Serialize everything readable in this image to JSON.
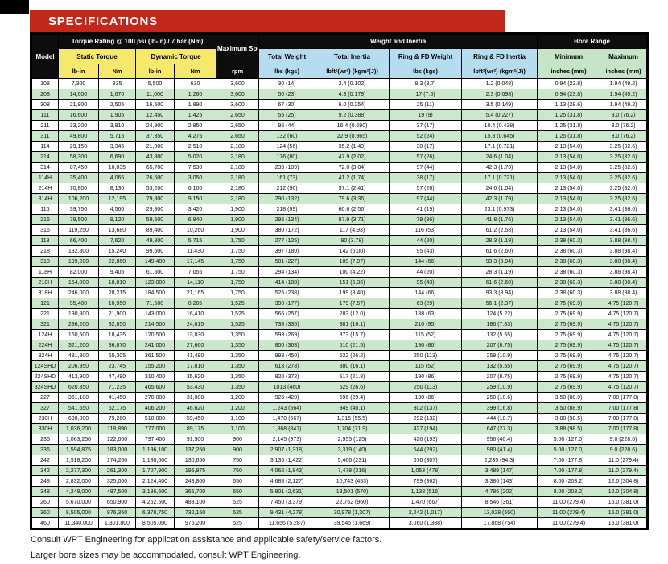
{
  "page": {
    "banner_title": "SPECIFICATIONS",
    "footer_line1": "Consult WPT Engineering for application assistance and applicable safety/service factors.",
    "footer_line2": "Larger bore sizes may be accommodated, consult WPT Engineering.",
    "colors": {
      "banner_red": "#c1271b",
      "header_black": "#0d0d0d",
      "torque_yellow": "#f6e86a",
      "weight_blue": "#b6ddef",
      "bore_green": "#c6e5c6",
      "row_stripe_green": "#cbe8cc"
    }
  },
  "table": {
    "group_headers": {
      "model": "Model",
      "torque_rating": "Torque Rating @ 100 psi (lb-in) / 7 bar (Nm)",
      "max_speed": "Maximum Speed",
      "weight_inertia": "Weight and Inertia",
      "bore_range": "Bore Range"
    },
    "sub_headers": {
      "static_torque": "Static Torque",
      "dynamic_torque": "Dynamic Torque",
      "total_weight": "Total Weight",
      "total_inertia": "Total Inertia",
      "ring_fd_weight": "Ring & FD Weight",
      "ring_fd_inertia": "Ring & FD Inertia",
      "minimum": "Minimum",
      "maximum": "Maximum"
    },
    "unit_headers": {
      "static_lbin": "lb-in",
      "static_nm": "Nm",
      "dynamic_lbin": "lb-in",
      "dynamic_nm": "Nm",
      "rpm": "rpm",
      "total_weight": "lbs (kgs)",
      "total_inertia": "lbft²(wr²) (kgm²(J))",
      "ring_fd_weight": "lbs (kgs)",
      "ring_fd_inertia": "lbft²(wr²) (kgm²(J))",
      "bore_min": "inches (mm)",
      "bore_max": "inches (mm)"
    },
    "columns": [
      "model",
      "static_lbin",
      "static_nm",
      "dynamic_lbin",
      "dynamic_nm",
      "max_speed_rpm",
      "total_weight",
      "total_inertia",
      "ring_fd_weight",
      "ring_fd_inertia",
      "bore_min",
      "bore_max"
    ],
    "rows": [
      [
        "108",
        "7,300",
        "835",
        "5,500",
        "630",
        "3,600",
        "30 (14)",
        "2.4 (0.102)",
        "8.3 (3.7)",
        "1.2 (0.048)",
        "0.94 (23.8)",
        "1.94 (49.2)"
      ],
      [
        "208",
        "14,600",
        "1,670",
        "11,000",
        "1,260",
        "3,600",
        "50 (23)",
        "4.3 (0.179)",
        "17 (7.5)",
        "2.3 (0.098)",
        "0.94 (23.8)",
        "1.94 (49.2)"
      ],
      [
        "308",
        "21,900",
        "2,505",
        "16,500",
        "1,890",
        "3,600",
        "67 (30)",
        "6.0 (0.254)",
        "25 (11)",
        "3.5 (0.149)",
        "1.13 (28.6)",
        "1.94 (49.2)"
      ],
      [
        "111",
        "16,600",
        "1,905",
        "12,450",
        "1,425",
        "2,650",
        "55 (25)",
        "9.2 (0.388)",
        "19 (9)",
        "5.4 (0.227)",
        "1.25 (31.8)",
        "3.0 (76.2)"
      ],
      [
        "211",
        "33,200",
        "3,810",
        "24,900",
        "2,850",
        "2,650",
        "96 (44)",
        "16.4 (0.690)",
        "37 (17)",
        "10.4 (0.438)",
        "1.25 (31.8)",
        "3.0 (76.2)"
      ],
      [
        "311",
        "49,800",
        "5,715",
        "37,350",
        "4,275",
        "2,650",
        "132 (60)",
        "22.9 (0.965)",
        "52 (24)",
        "15.3 (0.645)",
        "1.25 (31.8)",
        "3.0 (76.2)"
      ],
      [
        "114",
        "29,150",
        "3,345",
        "21,900",
        "2,510",
        "2,180",
        "124 (56)",
        "35.2 (1.49)",
        "38 (17)",
        "17.1 (0.721)",
        "2.13 (54.0)",
        "3.25 (82.6)"
      ],
      [
        "214",
        "58,300",
        "6,690",
        "43,800",
        "5,020",
        "2,180",
        "176 (80)",
        "47.9 (2.02)",
        "57 (26)",
        "24.6 (1.04)",
        "2.13 (54.0)",
        "3.25 (82.6)"
      ],
      [
        "314",
        "87,450",
        "10,035",
        "65,700",
        "7,530",
        "2,180",
        "239 (109)",
        "72.0 (3.04)",
        "97 (44)",
        "42.3 (1.79)",
        "2.13 (54.0)",
        "3.25 (82.6)"
      ],
      [
        "114H",
        "35,400",
        "4,065",
        "26,600",
        "3,050",
        "2,180",
        "161 (73)",
        "41.2 (1.74)",
        "38 (17)",
        "17.1 (0.721)",
        "2.13 (54.0)",
        "3.25 (82.6)"
      ],
      [
        "214H",
        "70,800",
        "8,130",
        "53,200",
        "6,100",
        "2,180",
        "212 (96)",
        "57.1 (2.41)",
        "57 (26)",
        "24.6 (1.04)",
        "2.13 (54.0)",
        "3.25 (82.6)"
      ],
      [
        "314H",
        "106,200",
        "12,195",
        "79,800",
        "9,150",
        "2,180",
        "290 (132)",
        "79.6 (3.36)",
        "97 (44)",
        "42.3 (1.79)",
        "2.13 (54.0)",
        "3.25 (82.6)"
      ],
      [
        "116",
        "39,750",
        "4,560",
        "29,800",
        "3,420",
        "1,900",
        "218 (99)",
        "60.6 (2.56)",
        "41 (19)",
        "23.1 (0.973)",
        "2.13 (54.0)",
        "3.41 (86.6)"
      ],
      [
        "216",
        "79,500",
        "9,120",
        "59,600",
        "6,840",
        "1,900",
        "296 (134)",
        "87.9 (3.71)",
        "79 (36)",
        "41.8 (1.76)",
        "2.13 (54.0)",
        "3.41 (86.6)"
      ],
      [
        "316",
        "119,250",
        "13,680",
        "89,400",
        "10,260",
        "1,900",
        "380 (172)",
        "117 (4.93)",
        "116 (53)",
        "61.2 (2.58)",
        "2.13 (54.0)",
        "3.41 (86.6)"
      ],
      [
        "118",
        "66,400",
        "7,620",
        "49,800",
        "5,715",
        "1,750",
        "277 (125)",
        "90 (3.78)",
        "44 (20)",
        "28.3 (1.19)",
        "2.38 (60.3)",
        "3.88 (98.4)"
      ],
      [
        "218",
        "132,800",
        "15,240",
        "99,600",
        "11,430",
        "1,750",
        "397 (180)",
        "142 (6.00)",
        "95 (43)",
        "61.6 (2.60)",
        "2.38 (60.3)",
        "3.88 (98.4)"
      ],
      [
        "318",
        "199,200",
        "22,860",
        "149,400",
        "17,145",
        "1,750",
        "501 (227)",
        "189 (7.97)",
        "144 (66)",
        "93.3 (3.94)",
        "2.38 (60.3)",
        "3.88 (98.4)"
      ],
      [
        "118H",
        "82,000",
        "9,405",
        "61,500",
        "7,055",
        "1,750",
        "294 (134)",
        "100 (4.22)",
        "44 (20)",
        "28.3 (1.19)",
        "2.38 (60.3)",
        "3.88 (98.4)"
      ],
      [
        "218H",
        "164,000",
        "18,810",
        "123,000",
        "14,110",
        "1,750",
        "414 (188)",
        "151 (6.36)",
        "95 (43)",
        "61.6 (2.60)",
        "2.38 (60.3)",
        "3.88 (98.4)"
      ],
      [
        "318H",
        "246,000",
        "28,215",
        "184,500",
        "21,165",
        "1,750",
        "525 (238)",
        "199 (8.40)",
        "144 (66)",
        "93.3 (3.94)",
        "2.38 (60.3)",
        "3.88 (98.4)"
      ],
      [
        "121",
        "95,400",
        "10,950",
        "71,500",
        "8,205",
        "1,525",
        "390 (177)",
        "179 (7.57)",
        "63 (29)",
        "56.1 (2.37)",
        "2.75 (69.9)",
        "4.75 (120.7)"
      ],
      [
        "221",
        "190,800",
        "21,900",
        "143,000",
        "16,410",
        "1,525",
        "566 (257)",
        "283 (12.0)",
        "138 (63)",
        "124 (5.22)",
        "2.75 (69.9)",
        "4.75 (120.7)"
      ],
      [
        "321",
        "286,200",
        "32,850",
        "214,500",
        "24,615",
        "1,525",
        "738 (335)",
        "381 (16.1)",
        "210 (95)",
        "186 (7.83)",
        "2.75 (69.9)",
        "4.75 (120.7)"
      ],
      [
        "124H",
        "160,600",
        "18,435",
        "120,500",
        "13,830",
        "1,350",
        "593 (269)",
        "373 (15.7)",
        "115 (52)",
        "132 (5.55)",
        "2.75 (69.9)",
        "4.75 (120.7)"
      ],
      [
        "224H",
        "321,200",
        "36,870",
        "241,000",
        "27,660",
        "1,350",
        "800 (363)",
        "510 (21.5)",
        "190 (86)",
        "207 (8.75)",
        "2.75 (69.9)",
        "4.75 (120.7)"
      ],
      [
        "324H",
        "481,800",
        "55,305",
        "361,500",
        "41,490",
        "1,350",
        "993 (450)",
        "622 (26.2)",
        "250 (113)",
        "259 (10.9)",
        "2.75 (69.9)",
        "4.75 (120.7)"
      ],
      [
        "124SHD",
        "206,950",
        "23,745",
        "155,200",
        "17,810",
        "1,350",
        "613 (278)",
        "380 (16.1)",
        "115 (52)",
        "132 (5.55)",
        "2.75 (69.9)",
        "4.75 (120.7)"
      ],
      [
        "224SHD",
        "413,900",
        "47,490",
        "310,400",
        "35,620",
        "1,350",
        "820 (372)",
        "517 (21.8)",
        "190 (86)",
        "207 (8.75)",
        "2.75 (69.9)",
        "4.75 (120.7)"
      ],
      [
        "324SHD",
        "620,850",
        "71,235",
        "465,600",
        "53,430",
        "1,350",
        "1013 (460)",
        "629 (26.6)",
        "250 (113)",
        "259 (10.9)",
        "2.75 (69.9)",
        "4.75 (120.7)"
      ],
      [
        "227",
        "361,100",
        "41,450",
        "270,800",
        "31,080",
        "1,200",
        "926 (420)",
        "696 (29.4)",
        "190 (86)",
        "250 (10.6)",
        "3.50 (88.9)",
        "7.00 (177.8)"
      ],
      [
        "327",
        "541,650",
        "62,175",
        "406,200",
        "46,620",
        "1,200",
        "1,243 (564)",
        "949 (40.1)",
        "302 (137)",
        "399 (16.8)",
        "3.50 (88.9)",
        "7.00 (177.8)"
      ],
      [
        "230H",
        "690,800",
        "79,260",
        "518,000",
        "59,450",
        "1,100",
        "1,470 (667)",
        "1,315 (55.5)",
        "292 (132)",
        "444 (18.7)",
        "3.88 (98.5)",
        "7.00 (177.8)"
      ],
      [
        "330H",
        "1,036,200",
        "118,890",
        "777,000",
        "89,175",
        "1,100",
        "1,868 (847)",
        "1,704 (71.9)",
        "427 (194)",
        "647 (27.3)",
        "3.88 (98.5)",
        "7.00 (177.8)"
      ],
      [
        "236",
        "1,063,250",
        "122,000",
        "797,400",
        "91,500",
        "900",
        "2,145 (973)",
        "2,955 (125)",
        "426 (193)",
        "956 (40.4)",
        "5.00 (127.0)",
        "9.0 (228.6)"
      ],
      [
        "336",
        "1,594,875",
        "183,000",
        "1,196,100",
        "137,250",
        "900",
        "2,907 (1,318)",
        "3,319 (140)",
        "644 (292)",
        "980 (41.4)",
        "5.00 (127.0)",
        "9.0 (228.6)"
      ],
      [
        "242",
        "1,518,200",
        "174,200",
        "1,138,600",
        "130,650",
        "750",
        "3,135 (1,422)",
        "5,466 (231)",
        "676 (307)",
        "2,235 (94.3)",
        "7.00 (177.8)",
        "11.0 (279.4)"
      ],
      [
        "342",
        "2,277,300",
        "261,300",
        "1,707,900",
        "195,975",
        "750",
        "4,062 (1,843)",
        "7,478 (316)",
        "1,053 (478)",
        "3,489 (147)",
        "7.00 (177.8)",
        "11.0 (279.4)"
      ],
      [
        "248",
        "2,832,000",
        "325,000",
        "2,124,400",
        "243,800",
        "650",
        "4,688 (2,127)",
        "10,743 (453)",
        "799 (362)",
        "3,386 (143)",
        "8.00 (203.2)",
        "12.0 (304.8)"
      ],
      [
        "348",
        "4,248,000",
        "487,500",
        "3,186,600",
        "365,700",
        "650",
        "5,801 (2,631)",
        "13,501 (570)",
        "1,138 (516)",
        "4,786 (202)",
        "8.00 (203.2)",
        "12.0 (304.8)"
      ],
      [
        "260",
        "5,670,000",
        "650,900",
        "4,252,500",
        "488,100",
        "525",
        "7,450 (3,379)",
        "22,752 (960)",
        "1,470 (667)",
        "8,546 (361)",
        "11.00 (279.4)",
        "15.0 (381.0)"
      ],
      [
        "360",
        "8,505,000",
        "976,350",
        "6,378,750",
        "732,150",
        "525",
        "9,431 (4,278)",
        "30,978 (1,307)",
        "2,242 (1,017)",
        "13,028 (550)",
        "11.00 (279.4)",
        "15.0 (381.0)"
      ],
      [
        "460",
        "11,340,000",
        "1,301,800",
        "8,505,000",
        "976,200",
        "525",
        "11,656 (5,287)",
        "39,545 (1,669)",
        "3,060 (1,388)",
        "17,868 (754)",
        "11.00 (279.4)",
        "15.0 (381.0)"
      ]
    ]
  }
}
